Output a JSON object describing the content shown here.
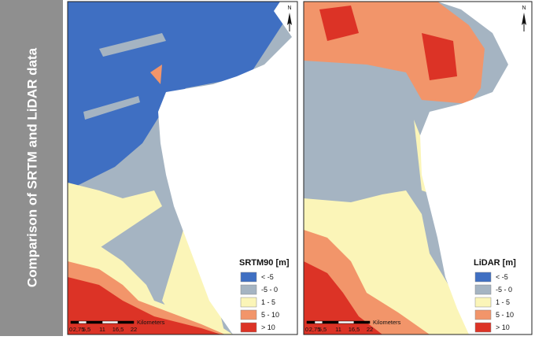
{
  "sidebar_title": "Comparison of SRTM and LiDAR data",
  "panels": [
    {
      "legend": {
        "title": "SRTM90 [m]",
        "items": [
          {
            "label": "< -5",
            "color": "#3f6fc2"
          },
          {
            "label": "-5 - 0",
            "color": "#a5b4c2"
          },
          {
            "label": "1 - 5",
            "color": "#fbf5b8"
          },
          {
            "label": "5 - 10",
            "color": "#f2956a"
          },
          {
            "label": "> 10",
            "color": "#dc3326"
          }
        ]
      },
      "scale_bar": {
        "labels": [
          "0",
          "2,75",
          "5,5",
          "11",
          "16,5",
          "22"
        ],
        "unit": "Kilometers"
      },
      "north": "N"
    },
    {
      "legend": {
        "title": "LiDAR [m]",
        "items": [
          {
            "label": "< -5",
            "color": "#3f6fc2"
          },
          {
            "label": "-5 - 0",
            "color": "#a5b4c2"
          },
          {
            "label": "1 - 5",
            "color": "#fbf5b8"
          },
          {
            "label": "5 - 10",
            "color": "#f2956a"
          },
          {
            "label": "> 10",
            "color": "#dc3326"
          }
        ]
      },
      "scale_bar": {
        "labels": [
          "0",
          "2,75",
          "5,5",
          "11",
          "16,5",
          "22"
        ],
        "unit": "Kilometers"
      },
      "north": "N"
    }
  ]
}
